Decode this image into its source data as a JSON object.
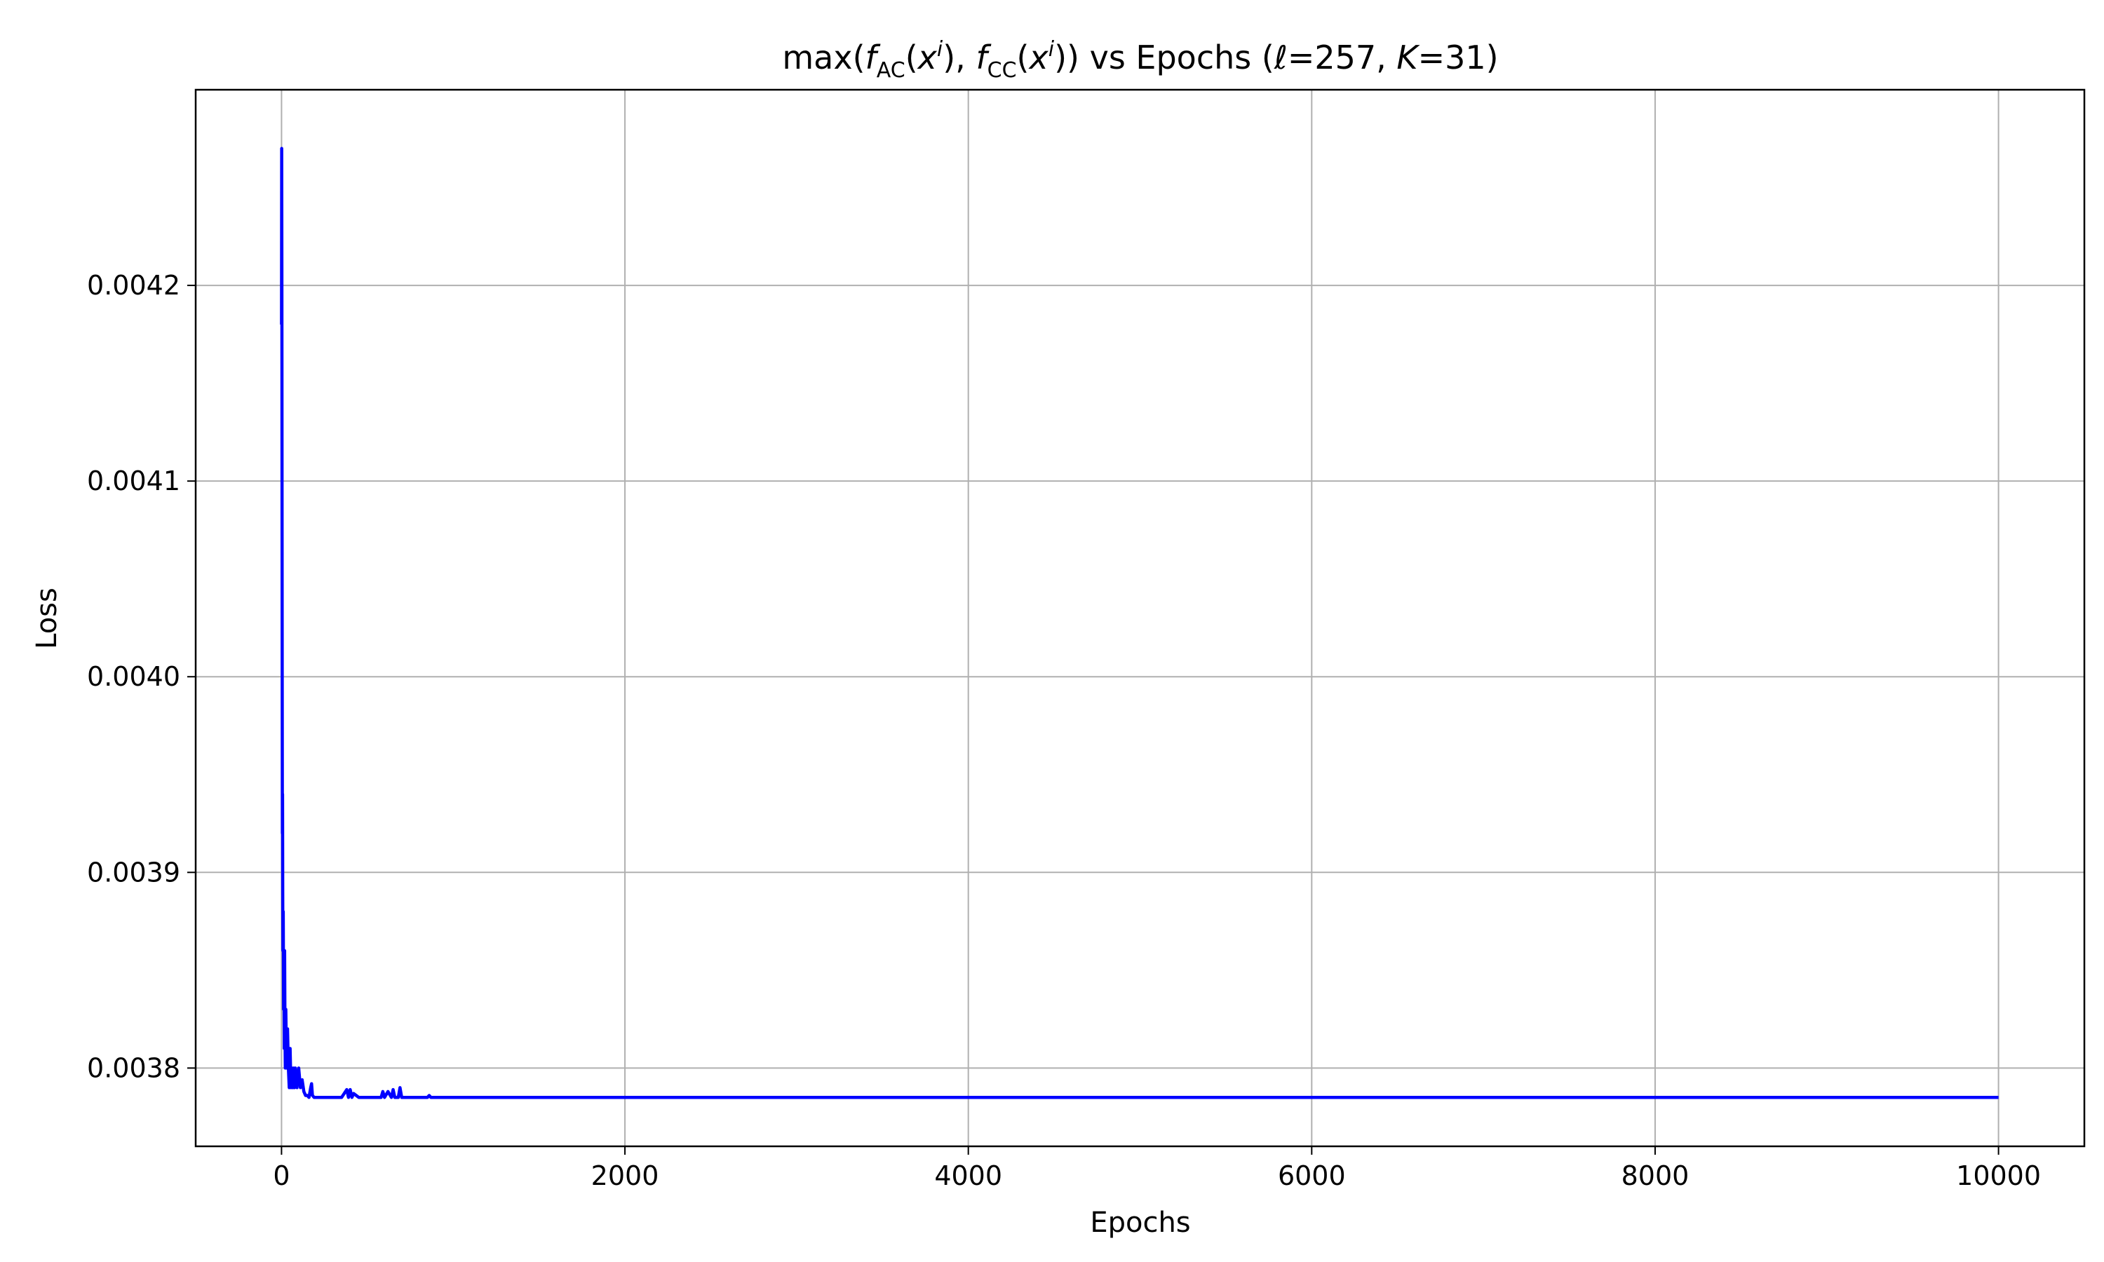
{
  "chart_data": {
    "type": "line",
    "title_parts": {
      "max": "max(",
      "f": "f",
      "ac_sub": "AC",
      "open1": "(",
      "x": "x",
      "i_sup": "i",
      "close_comma": "), ",
      "cc_sub": "CC",
      "close2": "))",
      "vs": " vs Epochs (",
      "ell": "ℓ",
      "eq257": "=257, ",
      "K": "K",
      "eq31": "=31)"
    },
    "xlabel": "Epochs",
    "ylabel": "Loss",
    "xlim": [
      -500,
      10500
    ],
    "ylim": [
      0.00376,
      0.0043
    ],
    "xticks": [
      0,
      2000,
      4000,
      6000,
      8000,
      10000
    ],
    "xtick_labels": [
      "0",
      "2000",
      "4000",
      "6000",
      "8000",
      "10000"
    ],
    "yticks": [
      0.0038,
      0.0039,
      0.004,
      0.0041,
      0.0042
    ],
    "ytick_labels": [
      "0.0038",
      "0.0039",
      "0.0040",
      "0.0041",
      "0.0042"
    ],
    "grid": true,
    "series": [
      {
        "color": "#0000ff",
        "x": [
          0,
          1,
          2,
          3,
          4,
          5,
          6,
          7,
          8,
          10,
          12,
          14,
          16,
          18,
          20,
          22,
          25,
          28,
          31,
          35,
          40,
          45,
          50,
          55,
          60,
          65,
          70,
          75,
          80,
          90,
          100,
          110,
          120,
          130,
          140,
          150,
          160,
          170,
          175,
          180,
          190,
          200,
          250,
          300,
          350,
          380,
          390,
          400,
          410,
          420,
          450,
          500,
          580,
          590,
          600,
          620,
          640,
          650,
          660,
          680,
          690,
          700,
          720,
          800,
          850,
          860,
          870,
          1000,
          1500,
          2000,
          3000,
          4000,
          5000,
          6000,
          7000,
          8000,
          9000,
          10000
        ],
        "y": [
          0.00418,
          0.00427,
          0.00421,
          0.0041,
          0.004,
          0.00392,
          0.00394,
          0.00389,
          0.00386,
          0.00388,
          0.00383,
          0.00385,
          0.00381,
          0.00386,
          0.00382,
          0.0038,
          0.00383,
          0.00381,
          0.0038,
          0.00382,
          0.0038,
          0.00379,
          0.00381,
          0.00379,
          0.0038,
          0.00379,
          0.0038,
          0.00379,
          0.0038,
          0.00379,
          0.0038,
          0.00379,
          0.003794,
          0.003788,
          0.003786,
          0.003786,
          0.003785,
          0.00379,
          0.003792,
          0.003786,
          0.003785,
          0.003785,
          0.003785,
          0.003785,
          0.003785,
          0.003789,
          0.003785,
          0.003789,
          0.003785,
          0.003787,
          0.003785,
          0.003785,
          0.003785,
          0.003788,
          0.003785,
          0.003788,
          0.003785,
          0.003789,
          0.003785,
          0.003785,
          0.00379,
          0.003785,
          0.003785,
          0.003785,
          0.003785,
          0.003786,
          0.003785,
          0.003785,
          0.003785,
          0.003785,
          0.003785,
          0.003785,
          0.003785,
          0.003785,
          0.003785,
          0.003785,
          0.003785,
          0.003785
        ]
      }
    ]
  }
}
